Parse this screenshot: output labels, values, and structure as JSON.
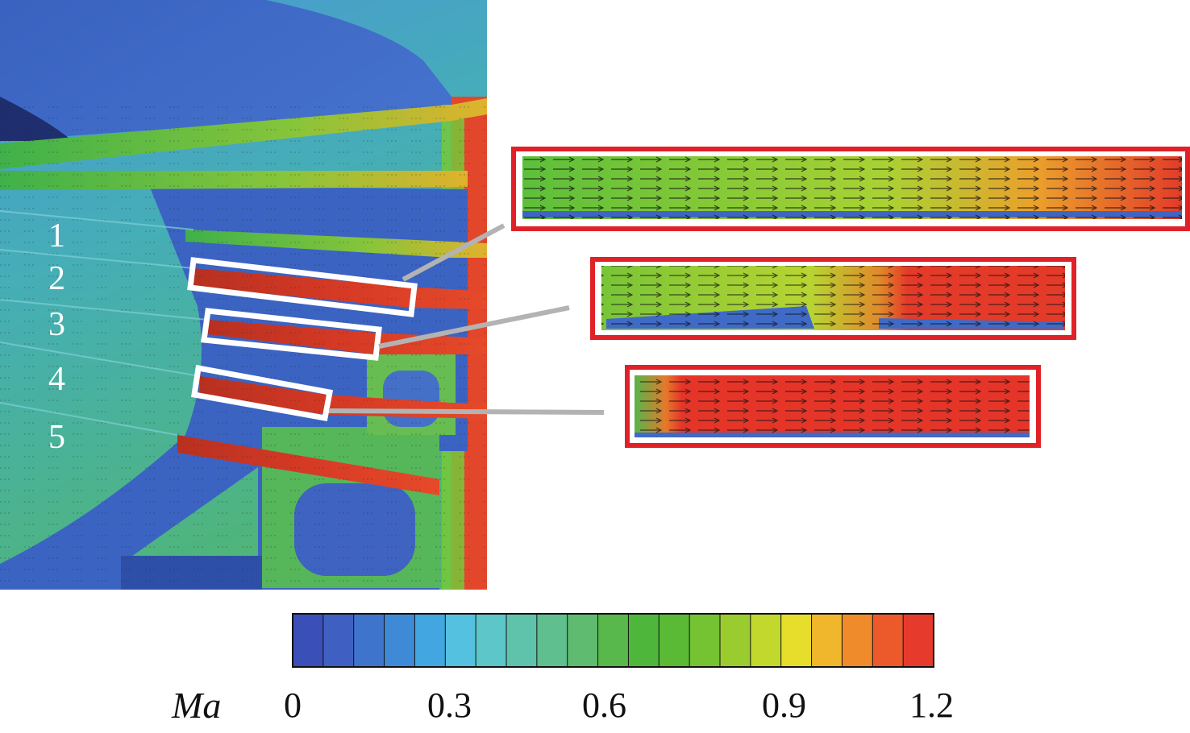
{
  "figure": {
    "nozzle_labels": [
      "1",
      "2",
      "3",
      "4",
      "5"
    ],
    "colorbar": {
      "variable": "Ma",
      "tick_labels": [
        "0",
        "0.3",
        "0.6",
        "0.9",
        "1.2"
      ],
      "min": 0,
      "max": 1.2,
      "levels": 20,
      "colors": [
        "#3b4fb8",
        "#3f5fc2",
        "#3e74cc",
        "#3f8ad6",
        "#42a6e0",
        "#55c1e0",
        "#5cc6c9",
        "#5fc3ac",
        "#60bf8e",
        "#5fbb70",
        "#58b84b",
        "#4fb63c",
        "#5bba35",
        "#75c233",
        "#9acc2f",
        "#c2d82c",
        "#e6de2b",
        "#f0b72c",
        "#f08b2b",
        "#ec5a2b",
        "#e63b2c"
      ]
    },
    "colors": {
      "zoom_frame": "#e02127",
      "highlight_box": "#ffffff",
      "leader_line": "#b3b3b3",
      "body_blue": "#3d67c4"
    }
  }
}
